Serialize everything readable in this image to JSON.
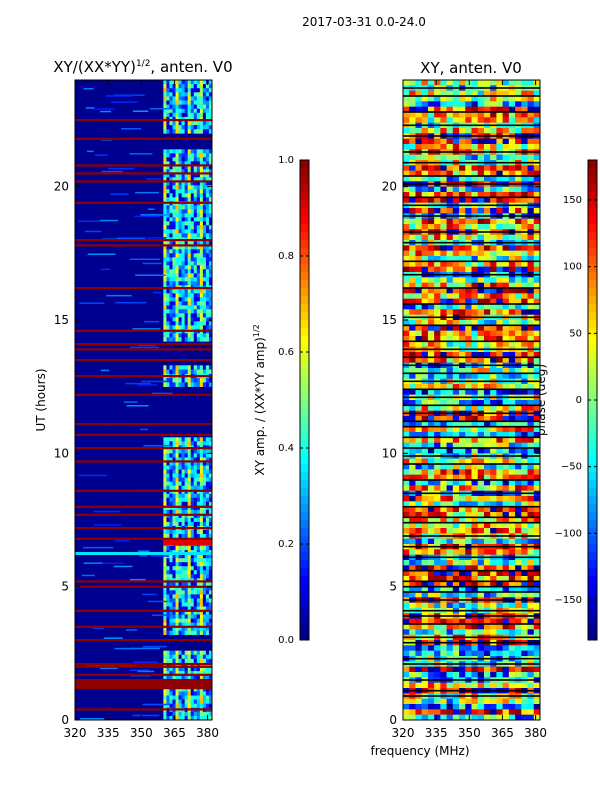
{
  "figure_title": "2017-03-31 0.0-24.0",
  "xlabel": "frequency (MHz)",
  "colors": {
    "background": "#ffffff",
    "deep_blue": "#00008f",
    "red": "#8f0000"
  },
  "chart_data": [
    {
      "type": "heatmap",
      "title_text": "XY/(XX*YY)",
      "title_sup": "1/2",
      "title_tail": ", anten. V0",
      "ylabel": "UT (hours)",
      "xlim": [
        320,
        382
      ],
      "ylim": [
        0,
        24
      ],
      "xticks": [
        "320",
        "335",
        "350",
        "365",
        "380"
      ],
      "xtick_values": [
        320,
        335,
        350,
        365,
        380
      ],
      "yticks": [
        "0",
        "5",
        "10",
        "15",
        "20"
      ],
      "ytick_values": [
        0,
        5,
        10,
        15,
        20
      ],
      "colorbar": {
        "label_text": "XY amp. / (XX*YY amp)",
        "label_sup": "1/2",
        "range": [
          0.0,
          1.0
        ],
        "ticks": [
          "0.0",
          "0.2",
          "0.4",
          "0.6",
          "0.8",
          "1.0"
        ],
        "tick_values": [
          0.0,
          0.2,
          0.4,
          0.6,
          0.8,
          1.0
        ],
        "colormap": "jet"
      },
      "flagged_hours": [
        0.4,
        1.2,
        1.4,
        1.5,
        1.7,
        2.0,
        2.1,
        3.0,
        3.5,
        4.1,
        5.0,
        5.2,
        6.8,
        7.2,
        7.7,
        8.0,
        8.6,
        9.7,
        10.2,
        10.7,
        11.1,
        12.2,
        12.9,
        13.5,
        13.9,
        14.1,
        14.6,
        16.2,
        17.8,
        18.0,
        19.4,
        20.2,
        20.5,
        20.8,
        21.8,
        22.5
      ],
      "high_band_mhz": [
        360,
        382
      ],
      "band_ranges_hours": [
        [
          0,
          2.6
        ],
        [
          3.2,
          10.6
        ],
        [
          12.5,
          13.3
        ],
        [
          14.2,
          21.4
        ],
        [
          22.0,
          24.0
        ]
      ],
      "feature_hour": 6.65,
      "feature_value": 0.9
    },
    {
      "type": "heatmap",
      "title": "XY, anten. V0",
      "xlim": [
        320,
        382
      ],
      "ylim": [
        0,
        24
      ],
      "xticks": [
        "320",
        "335",
        "350",
        "365",
        "380"
      ],
      "xtick_values": [
        320,
        335,
        350,
        365,
        380
      ],
      "yticks": [
        "0",
        "5",
        "10",
        "15",
        "20"
      ],
      "ytick_values": [
        0,
        5,
        10,
        15,
        20
      ],
      "colorbar": {
        "label": "phase (deg)",
        "range": [
          -180,
          180
        ],
        "ticks": [
          "−150",
          "−100",
          "−50",
          "0",
          "50",
          "100",
          "150"
        ],
        "tick_values": [
          -150,
          -100,
          -50,
          0,
          50,
          100,
          150
        ],
        "colormap": "jet"
      },
      "black_line_hours": [
        0.9,
        1.1,
        1.5,
        2.1,
        2.3,
        2.9,
        3.1,
        3.6,
        3.9,
        4.1,
        4.5,
        4.8,
        5.0,
        5.2,
        5.6,
        6.1,
        6.5,
        6.9,
        7.4,
        7.6,
        8.0,
        8.5,
        9.0,
        9.6,
        9.9,
        10.2,
        10.6,
        11.0,
        11.2,
        11.5,
        11.8,
        12.1,
        12.4,
        12.7,
        13.0,
        13.3,
        13.6,
        13.9,
        14.2,
        14.8,
        15.1,
        15.6,
        16.2,
        16.7,
        17.2,
        17.9,
        18.3,
        18.9,
        19.3,
        19.6,
        20.1,
        20.4,
        20.9,
        21.3,
        21.9,
        22.3,
        22.8,
        23.4,
        23.7
      ]
    }
  ]
}
